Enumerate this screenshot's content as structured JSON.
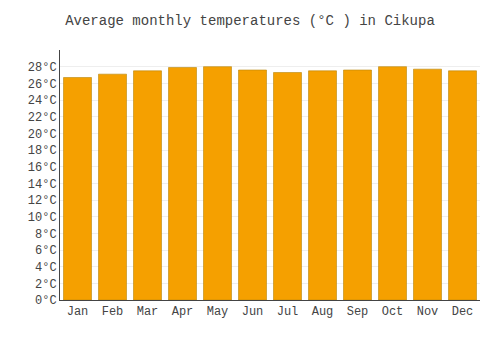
{
  "chart_data": {
    "type": "bar",
    "title": "Average monthly temperatures (°C ) in Cikupa",
    "categories": [
      "Jan",
      "Feb",
      "Mar",
      "Apr",
      "May",
      "Jun",
      "Jul",
      "Aug",
      "Sep",
      "Oct",
      "Nov",
      "Dec"
    ],
    "values": [
      26.7,
      27.1,
      27.5,
      27.9,
      28.0,
      27.6,
      27.3,
      27.5,
      27.6,
      28.0,
      27.7,
      27.5
    ],
    "color": "#F5A000",
    "ylim": [
      0,
      30
    ],
    "yticks": [
      {
        "value": 0,
        "label": "0°C"
      },
      {
        "value": 2,
        "label": "2°C"
      },
      {
        "value": 4,
        "label": "4°C"
      },
      {
        "value": 6,
        "label": "6°C"
      },
      {
        "value": 8,
        "label": "8°C"
      },
      {
        "value": 10,
        "label": "10°C"
      },
      {
        "value": 12,
        "label": "12°C"
      },
      {
        "value": 14,
        "label": "14°C"
      },
      {
        "value": 16,
        "label": "16°C"
      },
      {
        "value": 18,
        "label": "18°C"
      },
      {
        "value": 20,
        "label": "20°C"
      },
      {
        "value": 22,
        "label": "22°C"
      },
      {
        "value": 24,
        "label": "24°C"
      },
      {
        "value": 26,
        "label": "26°C"
      },
      {
        "value": 28,
        "label": "28°C"
      }
    ],
    "grid": true
  }
}
